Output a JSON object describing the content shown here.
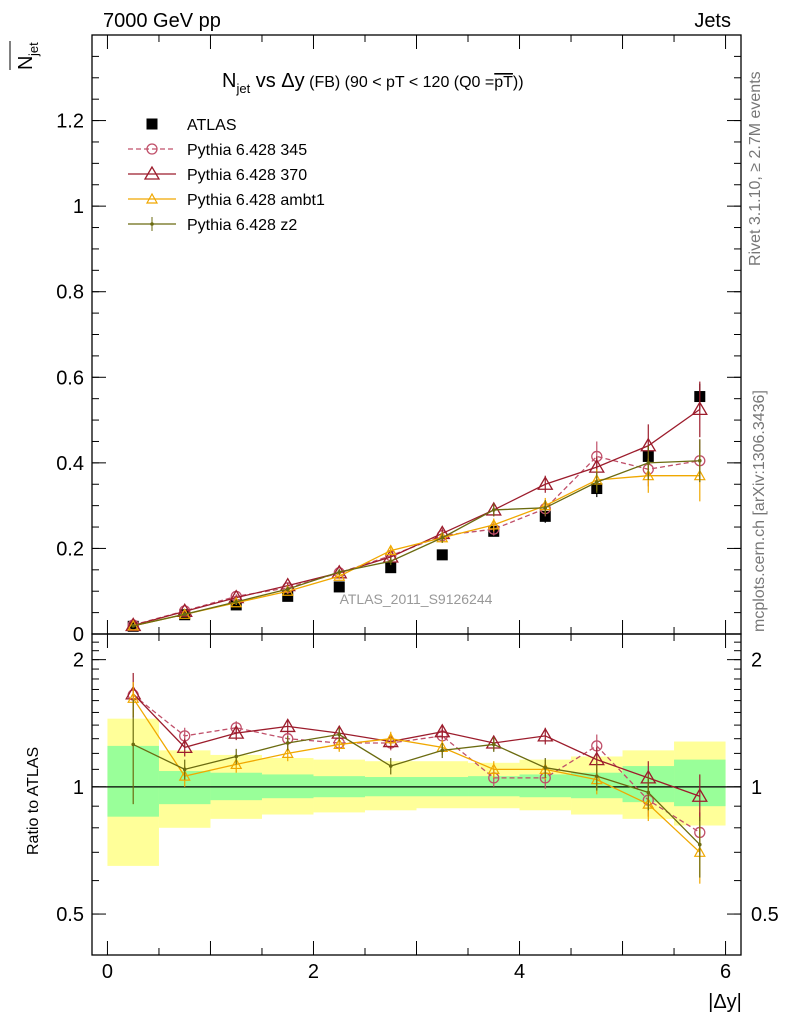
{
  "header": {
    "left": "7000 GeV pp",
    "right": "Jets"
  },
  "side": {
    "right_top": "Rivet 3.1.10, ≥ 2.7M events",
    "right_bottom": "mcplots.cern.ch [arXiv:1306.3436]"
  },
  "watermark": "ATLAS_2011_S9126244",
  "chart_data": [
    {
      "type": "scatter",
      "title": "N_jet vs Δy (FB) (90 < pT < 120 (Q0 = pT))",
      "title_parts": {
        "main": "N",
        "sub": "jet",
        "rest": " vs Δy",
        "paren": " (FB) (90 < pT < 120 (Q0 =",
        "pt": "pT",
        "close": "))"
      },
      "ylabel": "N̅_jet",
      "ylabel_parts": {
        "main": "N",
        "sub": "jet"
      },
      "ylim": [
        0,
        1.4
      ],
      "xlim": [
        -0.15,
        6.15
      ],
      "yticks": [
        "0",
        "0.2",
        "0.4",
        "0.6",
        "0.8",
        "1",
        "1.2"
      ],
      "legend_position": "top-left",
      "x": [
        0.25,
        0.75,
        1.25,
        1.75,
        2.25,
        2.75,
        3.25,
        3.75,
        4.25,
        4.75,
        5.25,
        5.75
      ],
      "series": [
        {
          "name": "ATLAS",
          "color": "#000000",
          "marker": "square",
          "values": [
            0.018,
            0.045,
            0.068,
            0.088,
            0.11,
            0.155,
            0.185,
            0.24,
            0.275,
            0.34,
            0.415,
            0.555
          ],
          "errors": [
            0.002,
            0.003,
            0.004,
            0.005,
            0.006,
            0.008,
            0.01,
            0.012,
            0.015,
            0.02,
            0.025,
            0.03
          ]
        },
        {
          "name": "Pythia 6.428 345",
          "color": "#c0506a",
          "marker": "circle",
          "dashed": true,
          "values": [
            0.021,
            0.054,
            0.088,
            0.108,
            0.143,
            0.183,
            0.23,
            0.245,
            0.293,
            0.415,
            0.385,
            0.405
          ],
          "errors": [
            0.002,
            0.003,
            0.005,
            0.006,
            0.007,
            0.009,
            0.012,
            0.015,
            0.018,
            0.035,
            0.04,
            0.05
          ]
        },
        {
          "name": "Pythia 6.428 370",
          "color": "#9c1c2c",
          "marker": "triangle",
          "values": [
            0.02,
            0.053,
            0.085,
            0.113,
            0.143,
            0.18,
            0.235,
            0.29,
            0.35,
            0.39,
            0.44,
            0.525
          ],
          "errors": [
            0.002,
            0.003,
            0.005,
            0.006,
            0.007,
            0.009,
            0.012,
            0.015,
            0.02,
            0.025,
            0.05,
            0.065
          ]
        },
        {
          "name": "Pythia 6.428 ambt1",
          "color": "#f0a800",
          "marker": "triangle-small",
          "values": [
            0.019,
            0.046,
            0.073,
            0.1,
            0.135,
            0.195,
            0.225,
            0.255,
            0.3,
            0.36,
            0.37,
            0.37
          ],
          "errors": [
            0.002,
            0.003,
            0.005,
            0.006,
            0.007,
            0.009,
            0.012,
            0.015,
            0.018,
            0.025,
            0.04,
            0.06
          ]
        },
        {
          "name": "Pythia 6.428 z2",
          "color": "#6b6b10",
          "marker": "dot",
          "values": [
            0.019,
            0.046,
            0.075,
            0.105,
            0.145,
            0.17,
            0.225,
            0.29,
            0.295,
            0.355,
            0.4,
            0.405
          ],
          "errors": [
            0.002,
            0.003,
            0.005,
            0.006,
            0.007,
            0.009,
            0.012,
            0.015,
            0.018,
            0.025,
            0.04,
            0.05
          ]
        }
      ]
    },
    {
      "type": "scatter",
      "ylabel": "Ratio to ATLAS",
      "ylim": [
        0.4,
        2.3
      ],
      "xlim": [
        -0.15,
        6.15
      ],
      "xlabel": "|Δy|",
      "xticks": [
        "0",
        "2",
        "4",
        "6"
      ],
      "yticks": [
        "0.5",
        "1",
        "2"
      ],
      "bands": {
        "edges": [
          0,
          0.5,
          1,
          1.5,
          2,
          2.5,
          3,
          3.5,
          4,
          4.5,
          5,
          5.5,
          6
        ],
        "yellow_low": [
          0.65,
          0.8,
          0.84,
          0.86,
          0.87,
          0.88,
          0.89,
          0.89,
          0.88,
          0.86,
          0.84,
          0.81
        ],
        "yellow_high": [
          1.45,
          1.22,
          1.19,
          1.17,
          1.16,
          1.15,
          1.15,
          1.14,
          1.16,
          1.18,
          1.22,
          1.28
        ],
        "green_low": [
          0.85,
          0.91,
          0.93,
          0.94,
          0.945,
          0.95,
          0.95,
          0.95,
          0.945,
          0.94,
          0.92,
          0.9
        ],
        "green_high": [
          1.25,
          1.09,
          1.08,
          1.07,
          1.06,
          1.055,
          1.055,
          1.06,
          1.07,
          1.08,
          1.12,
          1.16
        ]
      },
      "series": [
        {
          "name": "Pythia 6.428 345",
          "color": "#c0506a",
          "marker": "circle",
          "dashed": true,
          "values": [
            1.65,
            1.32,
            1.38,
            1.3,
            1.27,
            1.27,
            1.32,
            1.05,
            1.05,
            1.25,
            0.93,
            0.78
          ],
          "errors": [
            0.1,
            0.06,
            0.05,
            0.05,
            0.05,
            0.05,
            0.05,
            0.05,
            0.06,
            0.08,
            0.08,
            0.09
          ]
        },
        {
          "name": "Pythia 6.428 370",
          "color": "#9c1c2c",
          "marker": "triangle",
          "values": [
            1.66,
            1.24,
            1.34,
            1.39,
            1.34,
            1.28,
            1.35,
            1.27,
            1.32,
            1.16,
            1.05,
            0.95
          ],
          "errors": [
            0.2,
            0.06,
            0.05,
            0.05,
            0.05,
            0.05,
            0.05,
            0.05,
            0.06,
            0.08,
            0.1,
            0.12
          ]
        },
        {
          "name": "Pythia 6.428 ambt1",
          "color": "#f0a800",
          "marker": "triangle-small",
          "values": [
            1.62,
            1.06,
            1.13,
            1.2,
            1.26,
            1.3,
            1.24,
            1.1,
            1.1,
            1.04,
            0.91,
            0.7
          ],
          "errors": [
            0.15,
            0.06,
            0.05,
            0.05,
            0.05,
            0.05,
            0.05,
            0.05,
            0.06,
            0.08,
            0.08,
            0.11
          ]
        },
        {
          "name": "Pythia 6.428 z2",
          "color": "#6b6b10",
          "marker": "dot",
          "values": [
            1.26,
            1.1,
            1.18,
            1.27,
            1.33,
            1.12,
            1.22,
            1.26,
            1.11,
            1.06,
            0.97,
            0.73
          ],
          "errors": [
            0.35,
            0.06,
            0.05,
            0.05,
            0.05,
            0.05,
            0.05,
            0.05,
            0.06,
            0.08,
            0.09,
            0.12
          ]
        }
      ]
    }
  ]
}
